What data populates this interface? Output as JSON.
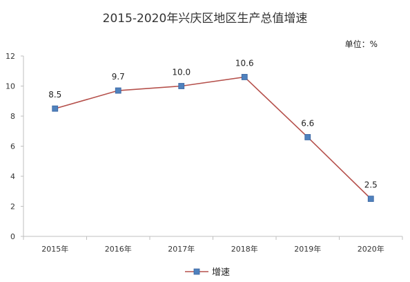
{
  "colors": {
    "line": "#b5504b",
    "marker_fill": "#4f81bd",
    "marker_stroke": "#3a64a0",
    "axis": "#bfbfbf",
    "text": "#333333"
  },
  "chart_data": {
    "type": "line",
    "title": "2015-2020年兴庆区地区生产总值增速",
    "unit_label": "单位：%",
    "categories": [
      "2015年",
      "2016年",
      "2017年",
      "2018年",
      "2019年",
      "2020年"
    ],
    "series": [
      {
        "name": "增速",
        "values": [
          8.5,
          9.7,
          10.0,
          10.6,
          6.6,
          2.5
        ],
        "labels": [
          "8.5",
          "9.7",
          "10.0",
          "10.6",
          "6.6",
          "2.5"
        ]
      }
    ],
    "y_ticks": [
      "0",
      "2",
      "4",
      "6",
      "8",
      "10",
      "12"
    ],
    "ylim": [
      0,
      12
    ],
    "grid": false,
    "legend_position": "bottom-center"
  }
}
